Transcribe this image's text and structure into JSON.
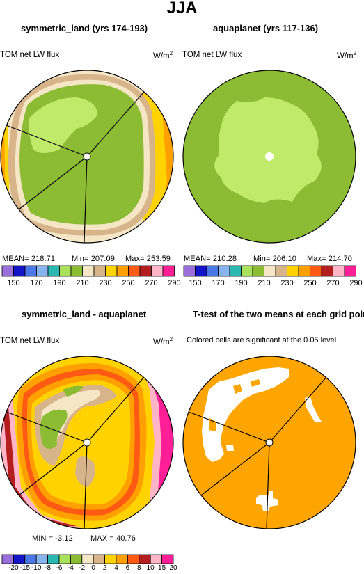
{
  "title": "JJA",
  "panels": {
    "p1": {
      "title": "symmetric_land (yrs 174-193)",
      "var": "TOM net LW flux",
      "unit": "W/m",
      "unit_sup": "2",
      "stats": {
        "mean": "MEAN= 218.71",
        "min": "Min= 207.09",
        "max": "Max= 253.59"
      }
    },
    "p2": {
      "title": "aquaplanet (yrs 117-136)",
      "var": "TOM net LW flux",
      "unit": "W/m",
      "unit_sup": "2",
      "stats": {
        "mean": "MEAN= 210.28",
        "min": "Min= 206.10",
        "max": "Max= 214.70"
      }
    },
    "p3": {
      "title": "symmetric_land - aquaplanet",
      "var": "TOM net LW flux",
      "unit": "W/m",
      "unit_sup": "2",
      "stats": {
        "min": "MIN =  -3.12",
        "max": "MAX =  40.76"
      }
    },
    "p4": {
      "title": "T-test of the two means at each grid point",
      "note": "Colored cells are significant at the 0.05 level"
    }
  },
  "colorbar_abs": {
    "colors": [
      "#9a6fdc",
      "#1414c8",
      "#4a78e6",
      "#87b4ee",
      "#2bb8b0",
      "#a9e05c",
      "#8cbc34",
      "#f5e6c6",
      "#d7b48a",
      "#ffd200",
      "#ffa000",
      "#ff5a14",
      "#b41e1e",
      "#ffb4c8",
      "#ff1e96"
    ],
    "labels": [
      "150",
      "170",
      "190",
      "210",
      "230",
      "250",
      "270",
      "290"
    ]
  },
  "colorbar_diff": {
    "colors": [
      "#9a6fdc",
      "#1414c8",
      "#4a78e6",
      "#87b4ee",
      "#2bb8b0",
      "#a9e05c",
      "#8cbc34",
      "#f5e6c6",
      "#d7b48a",
      "#ffd200",
      "#ffa000",
      "#ff5a14",
      "#b41e1e",
      "#ffb4c8",
      "#ff1e96"
    ],
    "labels": [
      "-20",
      "-15",
      "-10",
      "-8",
      "-6",
      "-4",
      "-2",
      "0",
      "2",
      "4",
      "6",
      "8",
      "10",
      "15",
      "20"
    ]
  },
  "colors": {
    "green_dark": "#8cbc34",
    "green_light": "#c0ea6a",
    "tan": "#f5e6c6",
    "brown": "#d7b48a",
    "yellow": "#ffd200",
    "orange": "#ffa000",
    "red": "#ff5a14",
    "darkred": "#b41e1e",
    "pink": "#ffb4c8",
    "magenta": "#ff1e96",
    "sig_orange": "#ffa500"
  }
}
